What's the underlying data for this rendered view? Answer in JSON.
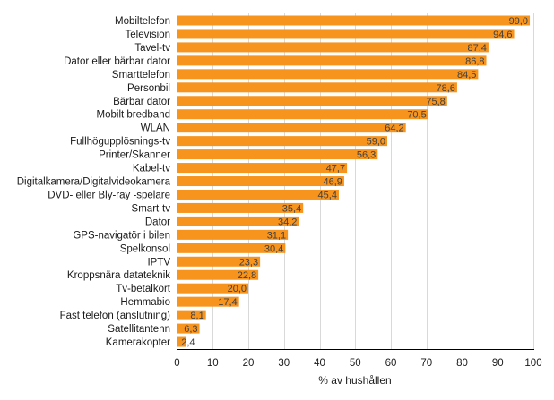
{
  "chart_data": {
    "type": "bar",
    "orientation": "horizontal",
    "categories": [
      "Mobiltelefon",
      "Television",
      "Tavel-tv",
      "Dator eller bärbar dator",
      "Smarttelefon",
      "Personbil",
      "Bärbar dator",
      "Mobilt bredband",
      "WLAN",
      "Fullhögupplösnings-tv",
      "Printer/Skanner",
      "Kabel-tv",
      "Digitalkamera/Digitalvideokamera",
      "DVD- eller Bly-ray -spelare",
      "Smart-tv",
      "Dator",
      "GPS-navigatör i bilen",
      "Spelkonsol",
      "IPTV",
      "Kroppsnära datateknik",
      "Tv-betalkort",
      "Hemmabio",
      "Fast telefon (anslutning)",
      "Satellitantenn",
      "Kamerakopter"
    ],
    "values": [
      99.0,
      94.6,
      87.4,
      86.8,
      84.5,
      78.6,
      75.8,
      70.5,
      64.2,
      59.0,
      56.3,
      47.7,
      46.9,
      45.4,
      35.4,
      34.2,
      31.1,
      30.4,
      23.3,
      22.8,
      20.0,
      17.4,
      8.1,
      6.3,
      2.4
    ],
    "value_labels": [
      "99,0",
      "94,6",
      "87,4",
      "86,8",
      "84,5",
      "78,6",
      "75,8",
      "70,5",
      "64,2",
      "59,0",
      "56,3",
      "47,7",
      "46,9",
      "45,4",
      "35,4",
      "34,2",
      "31,1",
      "30,4",
      "23,3",
      "22,8",
      "20,0",
      "17,4",
      "8,1",
      "6,3",
      "2,4"
    ],
    "title": "",
    "xlabel": "% av hushållen",
    "ylabel": "",
    "xlim": [
      0,
      100
    ],
    "xticks": [
      "0",
      "10",
      "20",
      "30",
      "40",
      "50",
      "60",
      "70",
      "80",
      "90",
      "100"
    ],
    "grid": true,
    "bar_color": "#F7941D"
  }
}
